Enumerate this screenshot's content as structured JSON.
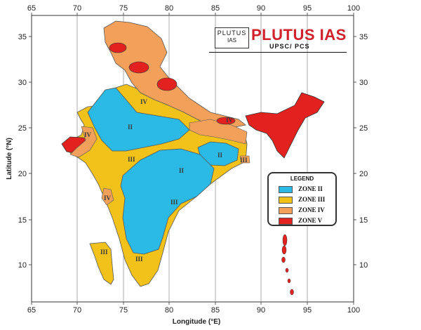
{
  "map": {
    "xlabel": "Longitude (°E)",
    "ylabel": "Latitude (°N)",
    "x_ticks": [
      "65",
      "70",
      "75",
      "80",
      "85",
      "90",
      "95",
      "100"
    ],
    "y_ticks": [
      "10",
      "15",
      "20",
      "25",
      "30",
      "35"
    ],
    "zone_marks": [
      "II",
      "II",
      "II",
      "III",
      "III",
      "III",
      "III",
      "III",
      "IV",
      "IV",
      "IV",
      "IV"
    ]
  },
  "legend": {
    "title": "LEGEND",
    "items": [
      {
        "label": "ZONE II",
        "color": "#2bb9e6"
      },
      {
        "label": "ZONE III",
        "color": "#f2c21b"
      },
      {
        "label": "ZONE IV",
        "color": "#f3a15a"
      },
      {
        "label": "ZONE V",
        "color": "#e3221f"
      }
    ]
  },
  "logo": {
    "box_top": "PLUTUS",
    "box_bottom": "IAS",
    "title": "PLUTUS IAS",
    "subtitle": "UPSC/ PCS"
  },
  "colors": {
    "zone2": "#2bb9e6",
    "zone3": "#f2c21b",
    "zone4": "#f3a15a",
    "zone5": "#e3221f",
    "brand": "#d0202a"
  }
}
